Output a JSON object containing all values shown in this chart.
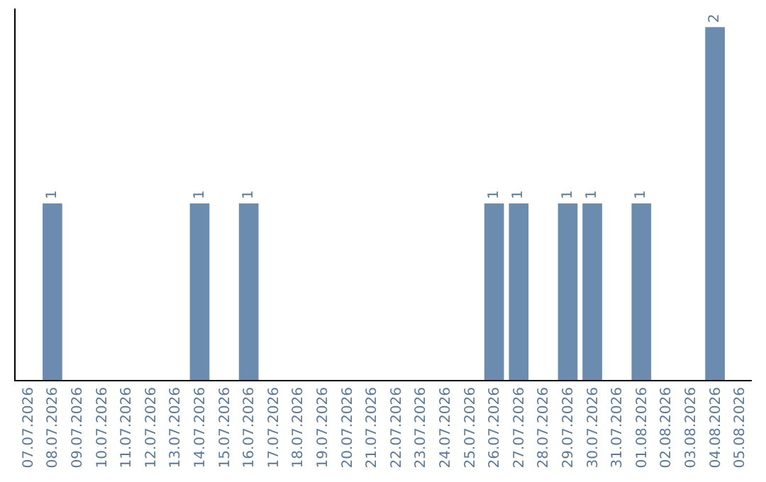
{
  "chart_data": {
    "type": "bar",
    "categories": [
      "07.07.2026",
      "08.07.2026",
      "09.07.2026",
      "10.07.2026",
      "11.07.2026",
      "12.07.2026",
      "13.07.2026",
      "14.07.2026",
      "15.07.2026",
      "16.07.2026",
      "17.07.2026",
      "18.07.2026",
      "19.07.2026",
      "20.07.2026",
      "21.07.2026",
      "22.07.2026",
      "23.07.2026",
      "24.07.2026",
      "25.07.2026",
      "26.07.2026",
      "27.07.2026",
      "28.07.2026",
      "29.07.2026",
      "30.07.2026",
      "31.07.2026",
      "01.08.2026",
      "02.08.2026",
      "03.08.2026",
      "04.08.2026",
      "05.08.2026"
    ],
    "values": [
      0,
      1,
      0,
      0,
      0,
      0,
      0,
      1,
      0,
      1,
      0,
      0,
      0,
      0,
      0,
      0,
      0,
      0,
      0,
      1,
      1,
      0,
      1,
      1,
      0,
      1,
      0,
      0,
      2,
      0
    ],
    "value_labels": [
      null,
      "1",
      null,
      null,
      null,
      null,
      null,
      "1",
      null,
      "1",
      null,
      null,
      null,
      null,
      null,
      null,
      null,
      null,
      null,
      "1",
      "1",
      null,
      "1",
      "1",
      null,
      "1",
      null,
      null,
      "2",
      null
    ],
    "color": "#6b8cae",
    "grid": false,
    "legend": false,
    "tick_labels": "x"
  }
}
